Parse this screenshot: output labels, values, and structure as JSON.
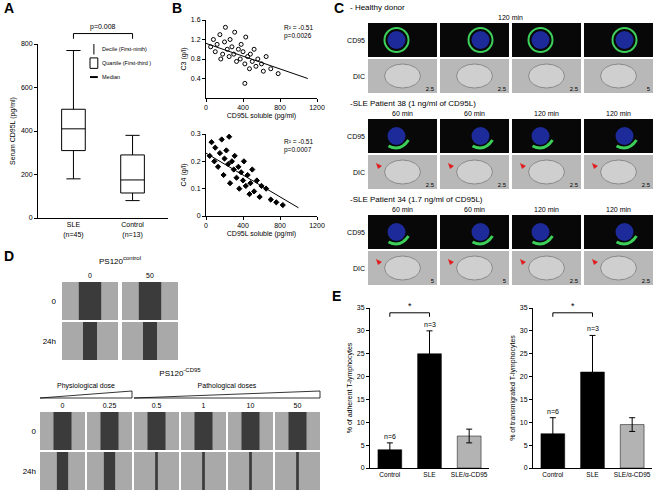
{
  "chart_data": [
    {
      "panel": "A",
      "type": "box",
      "categories": [
        "SLE\n(n=45)",
        "Control\n(n=13)"
      ],
      "stats": [
        {
          "lower": 180,
          "q1": 310,
          "median": 410,
          "q3": 500,
          "upper": 770
        },
        {
          "lower": 80,
          "q1": 115,
          "median": 175,
          "q3": 290,
          "upper": 380
        }
      ],
      "y_label": "Serum CD95L (pg/ml)",
      "ylim": [
        0,
        800
      ],
      "yticks": [
        0,
        200,
        400,
        600,
        800
      ],
      "annotations": [
        {
          "text": "p=0.008",
          "from": "SLE\n(n=45)",
          "to": "Control\n(n=13)"
        }
      ],
      "legend_items": [
        "Decile (First-ninth)",
        "Quartile (First-third )",
        "Median"
      ],
      "color": "#ffffff",
      "grid": false
    },
    {
      "panel": "B",
      "type": "scatter",
      "x_label": "CD95L soluble (pg/ml)",
      "y_label": "C3 (g/l)",
      "xlim": [
        0,
        1200
      ],
      "xticks": [
        0,
        400,
        800,
        1200
      ],
      "ylim": [
        0,
        1.6
      ],
      "yticks": [
        0.4,
        0.8,
        1.2,
        1.6
      ],
      "annotations": [
        "R² = -0.51",
        "p=0.0026"
      ],
      "grid": false,
      "series": [
        {
          "type": "scatter",
          "marker": "circle-open",
          "color": "#000000",
          "x": [
            50,
            80,
            100,
            120,
            150,
            160,
            180,
            200,
            210,
            230,
            250,
            260,
            280,
            300,
            310,
            330,
            350,
            370,
            380,
            400,
            420,
            420,
            430,
            450,
            470,
            480,
            500,
            520,
            540,
            560,
            600,
            620,
            650,
            700,
            780
          ],
          "values": [
            1.05,
            1.2,
            0.95,
            1.1,
            1.3,
            0.8,
            0.9,
            1.15,
            1.45,
            1.0,
            0.85,
            1.2,
            1.05,
            0.9,
            1.35,
            0.75,
            1.0,
            0.8,
            1.1,
            0.95,
            0.7,
            0.3,
            1.25,
            0.85,
            0.6,
            0.9,
            0.75,
            1.0,
            0.65,
            0.8,
            0.7,
            0.55,
            0.85,
            0.6,
            0.5
          ]
        },
        {
          "type": "line",
          "color": "#000000",
          "x": [
            0,
            1100
          ],
          "values": [
            1.12,
            0.4
          ]
        }
      ]
    },
    {
      "panel": "B",
      "type": "scatter",
      "x_label": "CD95L soluble (pg/ml)",
      "y_label": "C4 (g/l)",
      "xlim": [
        0,
        1200
      ],
      "xticks": [
        0,
        400,
        800,
        1200
      ],
      "ylim": [
        0,
        0.3
      ],
      "yticks": [
        0,
        0.1,
        0.2,
        0.3
      ],
      "annotations": [
        "R² = -0.51",
        "p=0.0007"
      ],
      "grid": false,
      "series": [
        {
          "type": "scatter",
          "marker": "diamond",
          "color": "#000000",
          "x": [
            40,
            60,
            90,
            100,
            130,
            150,
            170,
            190,
            200,
            220,
            240,
            250,
            260,
            280,
            300,
            310,
            330,
            350,
            360,
            380,
            400,
            410,
            430,
            450,
            470,
            480,
            500,
            520,
            550,
            580,
            600,
            650,
            700,
            760,
            830
          ],
          "values": [
            0.22,
            0.27,
            0.2,
            0.25,
            0.18,
            0.23,
            0.28,
            0.15,
            0.21,
            0.24,
            0.19,
            0.29,
            0.12,
            0.2,
            0.17,
            0.22,
            0.14,
            0.18,
            0.1,
            0.16,
            0.13,
            0.2,
            0.11,
            0.15,
            0.08,
            0.12,
            0.17,
            0.09,
            0.13,
            0.07,
            0.11,
            0.1,
            0.06,
            0.05,
            0.04
          ]
        },
        {
          "type": "line",
          "color": "#000000",
          "x": [
            0,
            1000
          ],
          "values": [
            0.23,
            0.03
          ]
        }
      ]
    },
    {
      "panel": "E",
      "type": "bar",
      "categories": [
        "Control",
        "SLE",
        "SLE/α-CD95"
      ],
      "values": [
        4,
        25,
        7
      ],
      "errors": [
        1.5,
        5,
        1.5
      ],
      "colors": [
        "#000000",
        "#000000",
        "#b3b3b3"
      ],
      "y_label": "% of adherent T-lymphocytes",
      "ylim": [
        0,
        35
      ],
      "yticks": [
        0,
        5,
        10,
        15,
        20,
        25,
        30,
        35
      ],
      "notes": [
        {
          "category": "Control",
          "text": "n=6"
        },
        {
          "category": "SLE",
          "text": "n=3"
        }
      ],
      "significance": {
        "from": "Control",
        "to": "SLE",
        "text": "*"
      },
      "grid": false
    },
    {
      "panel": "E",
      "type": "bar",
      "categories": [
        "Control",
        "SLE",
        "SLE/α-CD95"
      ],
      "values": [
        7.5,
        21,
        9.5
      ],
      "errors": [
        3.5,
        8,
        1.5
      ],
      "colors": [
        "#000000",
        "#000000",
        "#b3b3b3"
      ],
      "y_label": "% of transmigrated T-lymphocytes",
      "ylim": [
        0,
        35
      ],
      "yticks": [
        0,
        5,
        10,
        15,
        20,
        25,
        30,
        35
      ],
      "notes": [
        {
          "category": "Control",
          "text": "n=6"
        },
        {
          "category": "SLE",
          "text": "n=3"
        }
      ],
      "significance": {
        "from": "Control",
        "to": "SLE",
        "text": "*"
      },
      "grid": false
    }
  ],
  "panel_C": {
    "panel": "C",
    "row_labels": [
      "CD95",
      "DIC"
    ],
    "groups": [
      {
        "title": "- Healthy donor",
        "header": "120 min",
        "scales": [
          "2.5",
          "2.5",
          "2.5",
          "5"
        ]
      },
      {
        "title": "-SLE Patient 38 (1 ng/ml of CD95L)",
        "times": [
          "60 min",
          "60 min",
          "120 min",
          "120 min"
        ],
        "scales": [
          "2.5",
          "2.5",
          "2.5",
          "2.5"
        ]
      },
      {
        "title": "-SLE Patient 34 (1.7 ng/ml of CD95L)",
        "times": [
          "60 min",
          "60 min",
          "120 min",
          "120 min"
        ],
        "scales": [
          "5",
          "5",
          "2.5",
          "2.5"
        ]
      }
    ]
  },
  "panel_D": {
    "panel": "D",
    "rows": [
      "0",
      "24h"
    ],
    "control": {
      "label": {
        "text": "PS120",
        "superscript": "control"
      },
      "doses": [
        0,
        50
      ]
    },
    "treated": {
      "label": {
        "text": "PS120",
        "superscript": "-CD95"
      },
      "groups": [
        {
          "text": "Physiological dose",
          "doses": [
            0,
            0.25
          ]
        },
        {
          "text": "Pathological doses",
          "doses": [
            0.5,
            1,
            10,
            50
          ]
        }
      ]
    }
  }
}
